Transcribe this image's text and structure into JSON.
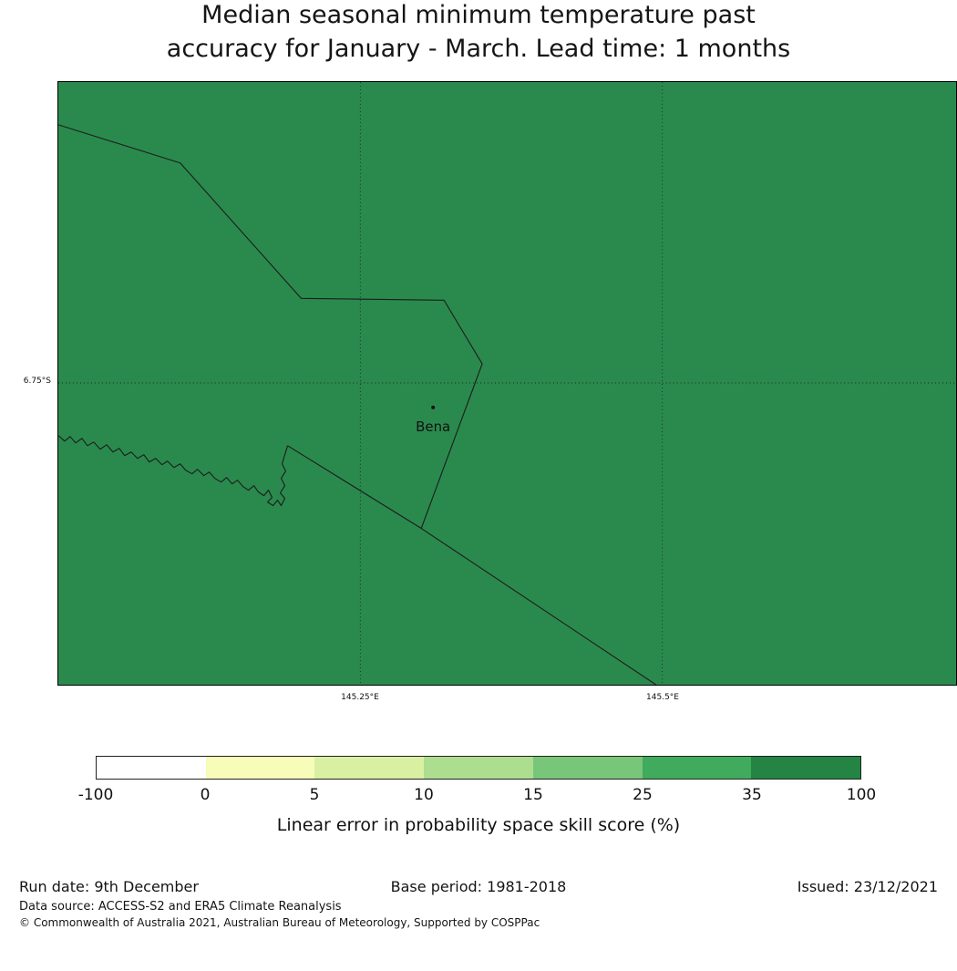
{
  "title": {
    "line1": "Median seasonal minimum temperature past",
    "line2": "accuracy for January - March. Lead time: 1 months"
  },
  "map": {
    "fill_color": "#2a8a4d",
    "line_color": "#1c1c1c",
    "station": {
      "name": "Bena"
    },
    "ytick": "6.75°S",
    "xticks": [
      "145.25°E",
      "145.5°E"
    ]
  },
  "colorbar": {
    "colors": [
      "#ffffff",
      "#f7fcb9",
      "#d9f0a3",
      "#addd8e",
      "#78c679",
      "#41ab5d",
      "#238443"
    ],
    "ticks": [
      "-100",
      "0",
      "5",
      "10",
      "15",
      "25",
      "35",
      "100"
    ],
    "label": "Linear error in probability space skill score (%)"
  },
  "footer": {
    "run_date": "Run date: 9th December",
    "base_period": "Base period: 1981-2018",
    "issued": "Issued: 23/12/2021",
    "data_source": "Data source: ACCESS-S2 and ERA5 Climate Reanalysis",
    "copyright": "© Commonwealth of Australia 2021, Australian Bureau of Meteorology, Supported by COSPPac"
  }
}
